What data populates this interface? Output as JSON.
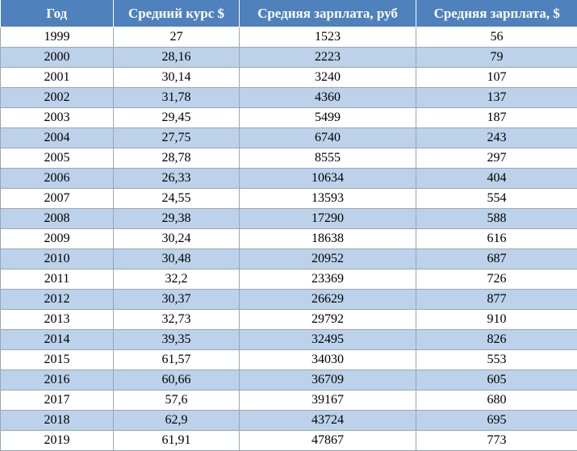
{
  "table": {
    "headers": [
      "Год",
      "Средний курс $",
      "Средняя зарплата, руб",
      "Средняя зарплата, $"
    ],
    "rows": [
      [
        "1999",
        "27",
        "1523",
        "56"
      ],
      [
        "2000",
        "28,16",
        "2223",
        "79"
      ],
      [
        "2001",
        "30,14",
        "3240",
        "107"
      ],
      [
        "2002",
        "31,78",
        "4360",
        "137"
      ],
      [
        "2003",
        "29,45",
        "5499",
        "187"
      ],
      [
        "2004",
        "27,75",
        "6740",
        "243"
      ],
      [
        "2005",
        "28,78",
        "8555",
        "297"
      ],
      [
        "2006",
        "26,33",
        "10634",
        "404"
      ],
      [
        "2007",
        "24,55",
        "13593",
        "554"
      ],
      [
        "2008",
        "29,38",
        "17290",
        "588"
      ],
      [
        "2009",
        "30,24",
        "18638",
        "616"
      ],
      [
        "2010",
        "30,48",
        "20952",
        "687"
      ],
      [
        "2011",
        "32,2",
        "23369",
        "726"
      ],
      [
        "2012",
        "30,37",
        "26629",
        "877"
      ],
      [
        "2013",
        "32,73",
        "29792",
        "910"
      ],
      [
        "2014",
        "39,35",
        "32495",
        "826"
      ],
      [
        "2015",
        "61,57",
        "34030",
        "553"
      ],
      [
        "2016",
        "60,66",
        "36709",
        "605"
      ],
      [
        "2017",
        "57,6",
        "39167",
        "680"
      ],
      [
        "2018",
        "62,9",
        "43724",
        "695"
      ],
      [
        "2019",
        "61,91",
        "47867",
        "773"
      ]
    ]
  },
  "colors": {
    "header_bg": "#4f81bd",
    "header_text": "#ffffff",
    "band_row": "#bcd2ea",
    "plain_row": "#ffffff"
  }
}
